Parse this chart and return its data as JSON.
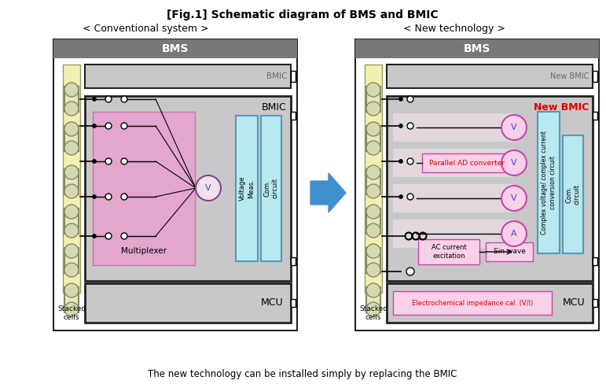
{
  "title": "[Fig.1] Schematic diagram of BMS and BMIC",
  "subtitle_left": "< Conventional system >",
  "subtitle_right": "< New technology >",
  "footer": "The new technology can be installed simply by replacing the BMIC",
  "bg_color": "#ffffff",
  "gray_header": "#787878",
  "light_gray": "#c8c8c8",
  "pink_fill": "#e8a0d0",
  "light_blue_fill": "#b8e8f0",
  "yellow_fill": "#f0f0b0",
  "yellow_strip": "#f0f0b0",
  "arrow_color": "#4090d0",
  "red_text": "#dd0000",
  "pink_box": "#f0b8d8",
  "dark_border": "#222222",
  "mid_gray": "#999999"
}
